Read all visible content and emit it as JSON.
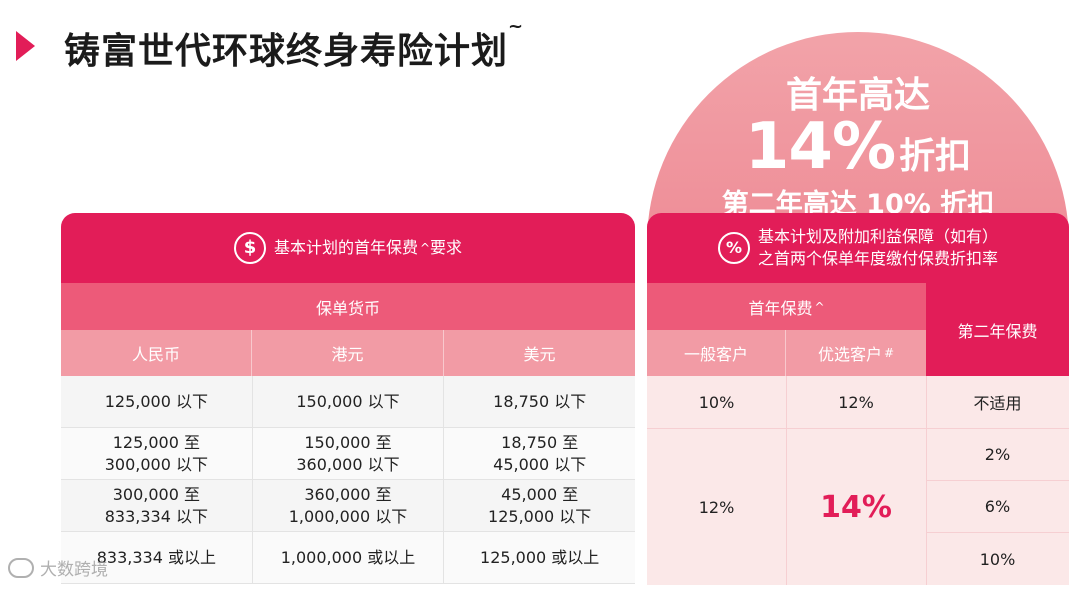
{
  "title": {
    "text": "铸富世代环球终身寿险计划",
    "sup": "~"
  },
  "promo": {
    "line1": "首年高达",
    "big": "14%",
    "big_suffix": "折扣",
    "line3": "第二年高达 10% 折扣"
  },
  "left_table": {
    "header": "基本计划的首年保费",
    "header_mark": "^",
    "header_suffix": "要求",
    "icon": "dollar-icon",
    "icon_glyph": "$",
    "currency_header": "保单货币",
    "columns": [
      "人民币",
      "港元",
      "美元"
    ],
    "rows": [
      [
        "125,000 以下",
        "150,000 以下",
        "18,750 以下"
      ],
      [
        "125,000 至\n300,000 以下",
        "150,000 至\n360,000 以下",
        "18,750 至\n45,000 以下"
      ],
      [
        "300,000 至\n833,334 以下",
        "360,000 至\n1,000,000 以下",
        "45,000 至\n125,000 以下"
      ],
      [
        "833,334 或以上",
        "1,000,000 或以上",
        "125,000 或以上"
      ]
    ]
  },
  "right_table": {
    "icon": "percent-icon",
    "icon_glyph": "%",
    "header_line1": "基本计划及附加利益保障（如有）",
    "header_line2": "之首两个保单年度缴付保费折扣率",
    "first_year": "首年保费",
    "first_year_mark": "^",
    "second_year": "第二年保费",
    "col_general": "一般客户",
    "col_preferred": "优选客户",
    "col_preferred_mark": "#",
    "row1": {
      "general": "10%",
      "preferred": "12%",
      "second": "不适用"
    },
    "merged": {
      "general": "12%",
      "preferred": "14%"
    },
    "second_year_rows": [
      "2%",
      "6%",
      "10%"
    ]
  },
  "watermark": "大数跨境",
  "colors": {
    "accent": "#e21d58",
    "sub": "#ed5a79",
    "light": "#f29ba5",
    "arch": "#ef939c"
  }
}
